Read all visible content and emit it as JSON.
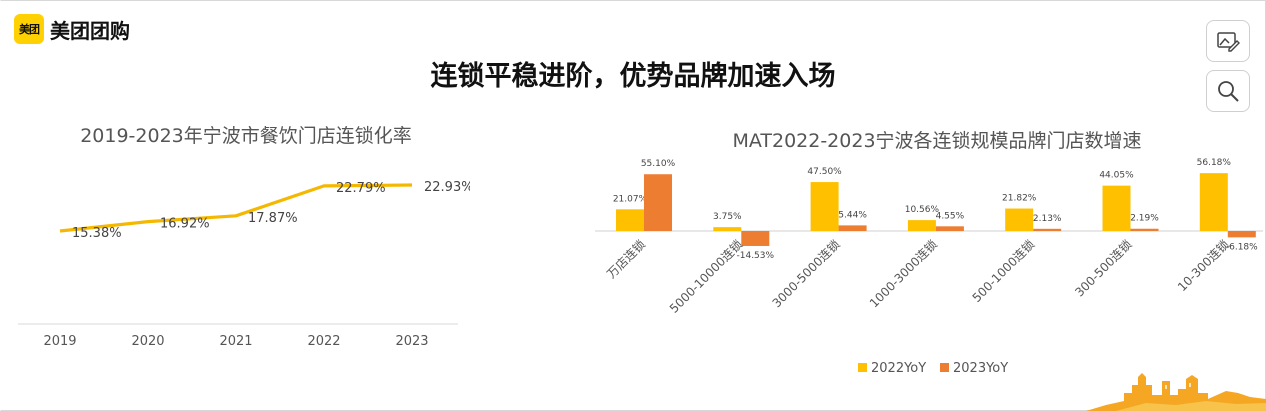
{
  "brand": {
    "badge_text": "美团",
    "name": "美团团购"
  },
  "page_title": "连锁平稳进阶，优势品牌加速入场",
  "toolbar": {
    "icons": [
      "image-edit-icon",
      "search-icon"
    ]
  },
  "chart_data": [
    {
      "type": "line",
      "title": "2019-2023年宁波市餐饮门店连锁化率",
      "categories": [
        "2019",
        "2020",
        "2021",
        "2022",
        "2023"
      ],
      "values": [
        15.38,
        16.92,
        17.87,
        22.79,
        22.93
      ],
      "labels": [
        "15.38%",
        "16.92%",
        "17.87%",
        "22.79%",
        "22.93%"
      ],
      "unit": "%",
      "ylim": [
        0,
        25
      ],
      "grid": false,
      "color": "#f5b800"
    },
    {
      "type": "bar",
      "title": "MAT2022-2023宁波各连锁规模品牌门店数增速",
      "categories": [
        "万店连锁",
        "5000-10000连锁",
        "3000-5000连锁",
        "1000-3000连锁",
        "500-1000连锁",
        "300-500连锁",
        "10-300连锁"
      ],
      "series": [
        {
          "name": "2022YoY",
          "color": "#ffc000",
          "values": [
            21.07,
            3.75,
            47.5,
            10.56,
            21.82,
            44.05,
            56.18
          ],
          "labels": [
            "21.07%",
            "3.75%",
            "47.50%",
            "10.56%",
            "21.82%",
            "44.05%",
            "56.18%"
          ]
        },
        {
          "name": "2023YoY",
          "color": "#ed7d31",
          "values": [
            55.1,
            -14.53,
            5.44,
            4.55,
            2.13,
            2.19,
            -6.18
          ],
          "labels": [
            "55.10%",
            "-14.53%",
            "5.44%",
            "4.55%",
            "2.13%",
            "2.19%",
            "-6.18%"
          ]
        }
      ],
      "unit": "%",
      "ylim": [
        -20,
        60
      ],
      "grid": false,
      "legend": "bottom"
    }
  ]
}
